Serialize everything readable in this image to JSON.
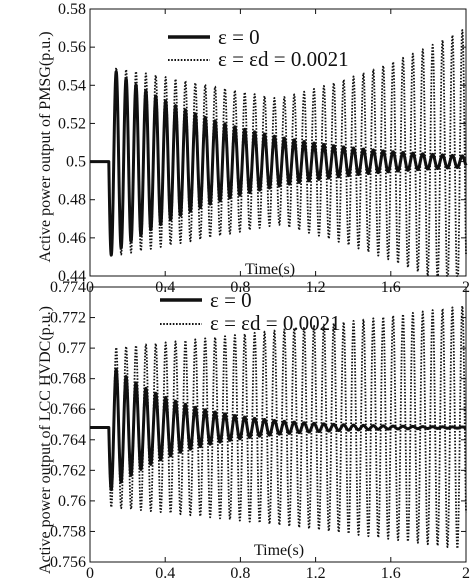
{
  "chart_data": [
    {
      "type": "line",
      "ylabel": "Active power output of PMSG(p.u.)",
      "xlabel": "Time(s)",
      "xlim": [
        0,
        2
      ],
      "ylim": [
        0.44,
        0.58
      ],
      "xticks": [
        "0",
        "0.4",
        "0.8",
        "1.2",
        "1.6",
        "2"
      ],
      "yticks": [
        "0.44",
        "0.46",
        "0.48",
        "0.5",
        "0.52",
        "0.54",
        "0.56",
        "0.58"
      ],
      "legend": {
        "position": "top-left",
        "entries": [
          "ε = 0",
          "ε = εd = 0.0021"
        ]
      },
      "series": [
        {
          "name": "ε = 0",
          "style": "solid",
          "color": "#111111",
          "baseline": 0.5,
          "disturbance_time": 0.1,
          "oscillation_period": 0.0526,
          "initial_amplitude": 0.05,
          "decay_rate": 1.5
        },
        {
          "name": "ε = εd = 0.0021",
          "style": "dotted",
          "color": "#111111",
          "baseline": 0.5,
          "disturbance_time": 0.1,
          "oscillation_period": 0.0526,
          "initial_amplitude": 0.05,
          "amplitude_at_1s": 0.033,
          "amplitude_at_2s": 0.07
        }
      ]
    },
    {
      "type": "line",
      "ylabel": "Active power output of LCC HVDC(p.u.)",
      "xlabel": "Time(s)",
      "xlim": [
        0,
        2
      ],
      "ylim": [
        0.756,
        0.774
      ],
      "xticks": [
        "0",
        "0.4",
        "0.8",
        "1.2",
        "1.6",
        "2"
      ],
      "yticks": [
        "0.756",
        "0.758",
        "0.76",
        "0.762",
        "0.764",
        "0.766",
        "0.768",
        "0.77",
        "0.772",
        "0.774"
      ],
      "legend": {
        "position": "top-center",
        "entries": [
          "ε = 0",
          "ε = εd = 0.0021"
        ]
      },
      "series": [
        {
          "name": "ε = 0",
          "style": "solid",
          "color": "#111111",
          "baseline": 0.7648,
          "disturbance_time": 0.1,
          "oscillation_period": 0.0526,
          "initial_amplitude": 0.0042,
          "decay_rate": 2.5
        },
        {
          "name": "ε = εd = 0.0021",
          "style": "dotted",
          "color": "#111111",
          "baseline": 0.7648,
          "disturbance_time": 0.1,
          "oscillation_period": 0.0526,
          "initial_amplitude": 0.0052,
          "amplitude_at_2s": 0.008
        }
      ]
    }
  ]
}
